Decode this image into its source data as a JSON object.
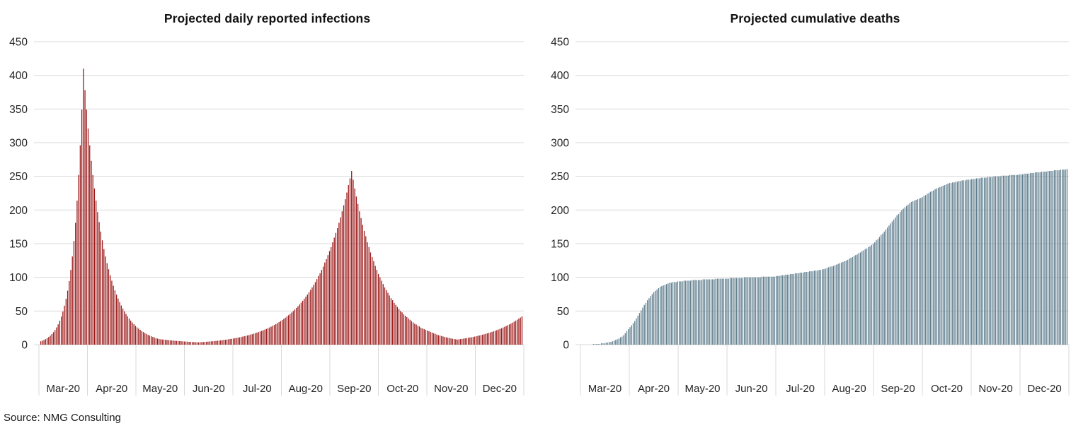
{
  "page": {
    "background": "#FFFFFF",
    "source_note": "Source: NMG Consulting"
  },
  "chart_data": [
    {
      "type": "bar",
      "title": "Projected daily reported infections",
      "bar_color": "#9C1B1B",
      "grid_color": "#D9D9D9",
      "label_color": "#262626",
      "xlabel": "",
      "ylabel": "",
      "ylim": [
        0,
        450
      ],
      "ytick_step": 50,
      "y_tick_labels": [
        "0",
        "50",
        "100",
        "150",
        "200",
        "250",
        "300",
        "350",
        "400",
        "450"
      ],
      "x_tick_labels": [
        "Mar-20",
        "Apr-20",
        "May-20",
        "Jun-20",
        "Jul-20",
        "Aug-20",
        "Sep-20",
        "Oct-20",
        "Nov-20",
        "Dec-20"
      ],
      "x_unit": "day",
      "legend": "none",
      "grid": "horizontal",
      "values": [
        5,
        5.9,
        6.9,
        8.2,
        9.6,
        11.3,
        13.3,
        15.7,
        18.5,
        21.7,
        25.6,
        30.1,
        35.5,
        41.8,
        49.2,
        57.9,
        68.1,
        80.2,
        94.4,
        111,
        131,
        154,
        181,
        214,
        252,
        296,
        349,
        410,
        378,
        349,
        321,
        296,
        273,
        252,
        232,
        214,
        197,
        182,
        168,
        155,
        142,
        131,
        121,
        112,
        103,
        95,
        87.5,
        80.6,
        74.3,
        68.5,
        63.2,
        58.2,
        53.7,
        49.5,
        45.6,
        42.1,
        38.8,
        35.8,
        33,
        30.4,
        28,
        25.8,
        23.8,
        22,
        20.2,
        18.7,
        17.2,
        15.9,
        14.6,
        13.5,
        12.4,
        11.5,
        10.6,
        9.7,
        9,
        8.3,
        8,
        7.7,
        7.5,
        7.2,
        7,
        6.7,
        6.5,
        6.3,
        6,
        5.8,
        5.6,
        5.4,
        5.3,
        5.1,
        4.9,
        4.7,
        4.5,
        4.4,
        4.2,
        4.1,
        3.9,
        3.8,
        3.7,
        3.5,
        3.4,
        3.6,
        3.7,
        3.9,
        4.1,
        4.3,
        4.5,
        4.7,
        4.9,
        5.1,
        5.3,
        5.6,
        5.8,
        6.1,
        6.4,
        6.7,
        7,
        7.3,
        7.6,
        8,
        8.4,
        8.7,
        9.1,
        9.6,
        10,
        10.5,
        10.9,
        11.4,
        12,
        12.5,
        13.1,
        13.7,
        14.3,
        15,
        15.6,
        16.4,
        17.1,
        17.9,
        18.7,
        19.6,
        20.5,
        21.4,
        22.4,
        23.4,
        24.5,
        25.6,
        26.8,
        28,
        29.3,
        30.6,
        32,
        33.5,
        35,
        36.6,
        38.2,
        40,
        41.8,
        43.7,
        45.7,
        47.8,
        49.9,
        52.2,
        54.6,
        57.1,
        59.7,
        62.4,
        65.2,
        68.2,
        71.3,
        74.5,
        77.9,
        81.4,
        85.1,
        89,
        93,
        97.3,
        102,
        106,
        111,
        116,
        122,
        127,
        133,
        139,
        145,
        152,
        159,
        166,
        173,
        181,
        189,
        198,
        207,
        216,
        226,
        237,
        247,
        258,
        245,
        232,
        220,
        209,
        198,
        188,
        178,
        169,
        161,
        152,
        145,
        137,
        130,
        124,
        117,
        111,
        105,
        100,
        95,
        90,
        85,
        81,
        77,
        73,
        69,
        66,
        62,
        59,
        56,
        53,
        50,
        48,
        45,
        43,
        41,
        39,
        37,
        35,
        33,
        31,
        30,
        28,
        27,
        25,
        24,
        23,
        22,
        21,
        20,
        19,
        18,
        17,
        16,
        15,
        14.2,
        13.5,
        12.8,
        12.1,
        11.5,
        10.9,
        10.4,
        9.8,
        9.3,
        8.8,
        8.4,
        8,
        7.6,
        7.9,
        8.3,
        8.6,
        9,
        9.4,
        9.8,
        10.2,
        10.6,
        11.1,
        11.5,
        12,
        12.5,
        13.1,
        13.6,
        14.2,
        14.8,
        15.4,
        16.1,
        16.8,
        17.5,
        18.2,
        19,
        19.8,
        20.7,
        21.6,
        22.5,
        23.4,
        24.4,
        25.5,
        26.6,
        27.7,
        28.9,
        30.1,
        31.4,
        32.7,
        34.1,
        35.6,
        37.1,
        38.7,
        40.3,
        42
      ]
    },
    {
      "type": "bar",
      "title": "Projected cumulative deaths",
      "bar_color": "#5E7D8D",
      "grid_color": "#D9D9D9",
      "label_color": "#262626",
      "xlabel": "",
      "ylabel": "",
      "ylim": [
        0,
        450
      ],
      "ytick_step": 50,
      "y_tick_labels": [
        "0",
        "50",
        "100",
        "150",
        "200",
        "250",
        "300",
        "350",
        "400",
        "450"
      ],
      "x_tick_labels": [
        "Mar-20",
        "Apr-20",
        "May-20",
        "Jun-20",
        "Jul-20",
        "Aug-20",
        "Sep-20",
        "Oct-20",
        "Nov-20",
        "Dec-20"
      ],
      "x_unit": "day",
      "legend": "none",
      "grid": "horizontal",
      "values": [
        0,
        0,
        0,
        0,
        0,
        0,
        0,
        1,
        1,
        1,
        1,
        1,
        2,
        2,
        2,
        3,
        3,
        4,
        4,
        5,
        6,
        7,
        8,
        9,
        11,
        12,
        14,
        17,
        20,
        23,
        26,
        29,
        32,
        35,
        39,
        43,
        47,
        51,
        55,
        59,
        62,
        66,
        69,
        72,
        75,
        78,
        80,
        82,
        84,
        86,
        87,
        88,
        89,
        90,
        91,
        92,
        92,
        93,
        93,
        93,
        94,
        94,
        94,
        94,
        95,
        95,
        95,
        95,
        95,
        96,
        96,
        96,
        96,
        96,
        96,
        96,
        97,
        97,
        97,
        97,
        97,
        97,
        97,
        97,
        98,
        98,
        98,
        98,
        98,
        98,
        98,
        98,
        98,
        99,
        99,
        99,
        99,
        99,
        99,
        99,
        99,
        99,
        100,
        100,
        100,
        100,
        100,
        100,
        100,
        100,
        100,
        100,
        100,
        101,
        101,
        101,
        101,
        101,
        101,
        101,
        101,
        101,
        102,
        102,
        102,
        103,
        103,
        103,
        104,
        104,
        104,
        105,
        105,
        105,
        106,
        106,
        106,
        107,
        107,
        107,
        108,
        108,
        108,
        109,
        109,
        109,
        110,
        110,
        110,
        111,
        111,
        112,
        112,
        113,
        114,
        115,
        116,
        116,
        117,
        118,
        119,
        120,
        121,
        122,
        123,
        124,
        125,
        126,
        128,
        129,
        130,
        132,
        133,
        134,
        136,
        137,
        139,
        140,
        142,
        143,
        145,
        146,
        148,
        150,
        152,
        155,
        157,
        160,
        163,
        165,
        168,
        171,
        174,
        177,
        180,
        183,
        186,
        189,
        192,
        194,
        197,
        200,
        202,
        204,
        206,
        208,
        210,
        212,
        213,
        214,
        215,
        216,
        217,
        218,
        219,
        221,
        222,
        224,
        225,
        227,
        228,
        229,
        231,
        232,
        233,
        234,
        235,
        236,
        237,
        238,
        239,
        240,
        240,
        241,
        241,
        242,
        242,
        243,
        243,
        244,
        244,
        244,
        245,
        245,
        245,
        246,
        246,
        246,
        247,
        247,
        247,
        248,
        248,
        248,
        248,
        249,
        249,
        249,
        249,
        250,
        250,
        250,
        250,
        250,
        251,
        251,
        251,
        251,
        251,
        252,
        252,
        252,
        252,
        252,
        252,
        253,
        253,
        253,
        254,
        254,
        254,
        254,
        255,
        255,
        255,
        256,
        256,
        256,
        256,
        257,
        257,
        257,
        257,
        258,
        258,
        258,
        258,
        259,
        259,
        259,
        259,
        260,
        260,
        260,
        260,
        261
      ]
    }
  ]
}
